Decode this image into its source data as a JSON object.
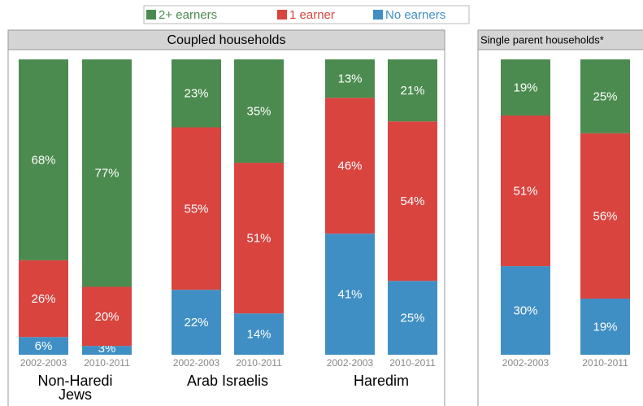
{
  "chart_data": [
    {
      "type": "bar",
      "stacked": true,
      "title": "Coupled households",
      "categories": [
        "2002-2003",
        "2010-2011",
        "2002-2003",
        "2010-2011",
        "2002-2003",
        "2010-2011"
      ],
      "groups": [
        "Non-Haredi Jews",
        "Arab Israelis",
        "Haredim"
      ],
      "ylim": [
        0,
        100
      ],
      "series": [
        {
          "name": "No earners",
          "color": "#3f8fc4",
          "values": [
            6,
            3,
            22,
            14,
            41,
            25
          ],
          "value_labels": [
            "6%",
            "3%",
            "22%",
            "14%",
            "41%",
            "25%"
          ]
        },
        {
          "name": "1 earner",
          "color": "#d9443f",
          "values": [
            26,
            20,
            55,
            51,
            46,
            54
          ],
          "value_labels": [
            "26%",
            "20%",
            "55%",
            "51%",
            "46%",
            "54%"
          ]
        },
        {
          "name": "2+ earners",
          "color": "#4b8b4f",
          "values": [
            68,
            77,
            23,
            35,
            13,
            21
          ],
          "value_labels": [
            "68%",
            "77%",
            "23%",
            "35%",
            "13%",
            "21%"
          ]
        }
      ]
    },
    {
      "type": "bar",
      "stacked": true,
      "title": "Single parent households*",
      "categories": [
        "2002-2003",
        "2010-2011"
      ],
      "ylim": [
        0,
        100
      ],
      "series": [
        {
          "color": "#3f8fc4",
          "values": [
            30,
            19
          ],
          "value_labels": [
            "30%",
            "19%"
          ]
        },
        {
          "color": "#d9443f",
          "values": [
            51,
            56
          ],
          "value_labels": [
            "51%",
            "56%"
          ]
        },
        {
          "color": "#4b8b4f",
          "values": [
            19,
            25
          ],
          "value_labels": [
            "19%",
            "25%"
          ]
        }
      ]
    }
  ]
}
